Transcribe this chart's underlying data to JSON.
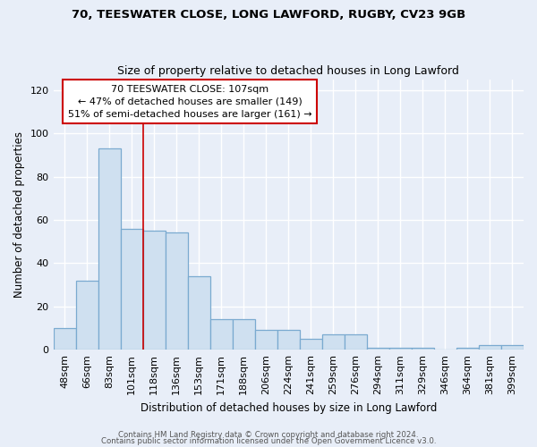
{
  "title1": "70, TEESWATER CLOSE, LONG LAWFORD, RUGBY, CV23 9GB",
  "title2": "Size of property relative to detached houses in Long Lawford",
  "xlabel": "Distribution of detached houses by size in Long Lawford",
  "ylabel": "Number of detached properties",
  "categories": [
    "48sqm",
    "66sqm",
    "83sqm",
    "101sqm",
    "118sqm",
    "136sqm",
    "153sqm",
    "171sqm",
    "188sqm",
    "206sqm",
    "224sqm",
    "241sqm",
    "259sqm",
    "276sqm",
    "294sqm",
    "311sqm",
    "329sqm",
    "346sqm",
    "364sqm",
    "381sqm",
    "399sqm"
  ],
  "values": [
    10,
    32,
    93,
    56,
    55,
    54,
    34,
    14,
    14,
    9,
    9,
    5,
    7,
    7,
    1,
    1,
    1,
    0,
    1,
    2,
    2
  ],
  "bar_color": "#cfe0f0",
  "bar_edge_color": "#7aaad0",
  "vline_x_index": 3,
  "vline_color": "#cc0000",
  "annotation_title": "70 TEESWATER CLOSE: 107sqm",
  "annotation_line2": "← 47% of detached houses are smaller (149)",
  "annotation_line3": "51% of semi-detached houses are larger (161) →",
  "annotation_box_color": "white",
  "annotation_box_edge": "#cc0000",
  "ylim": [
    0,
    125
  ],
  "yticks": [
    0,
    20,
    40,
    60,
    80,
    100,
    120
  ],
  "background_color": "#e8eef8",
  "grid_color": "white",
  "footer1": "Contains HM Land Registry data © Crown copyright and database right 2024.",
  "footer2": "Contains public sector information licensed under the Open Government Licence v3.0."
}
